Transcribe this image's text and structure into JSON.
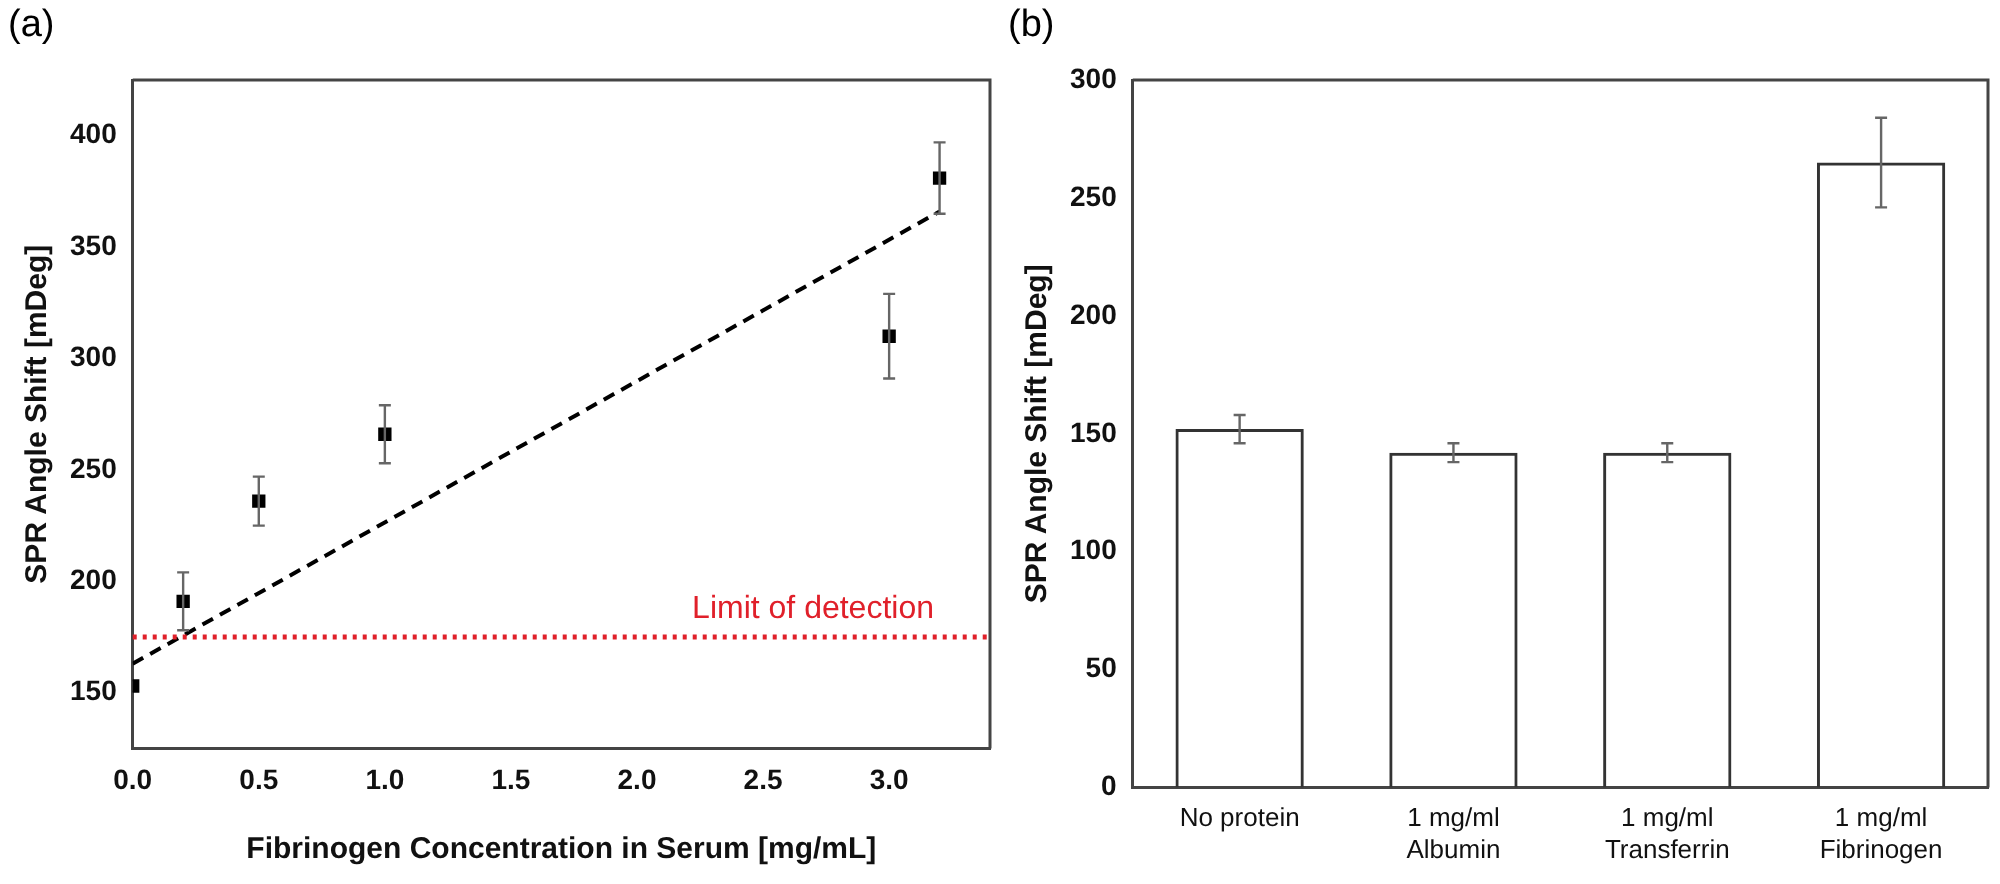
{
  "chart_data": [
    {
      "type": "scatter",
      "annotations": [
        "(a)"
      ],
      "xlabel": "Fibrinogen Concentration in Serum [mg/mL]",
      "ylabel": "SPR Angle Shift [mDeg]",
      "xlim": [
        0,
        3.4
      ],
      "xticks": [
        {
          "value": 0,
          "label": "0.0"
        },
        {
          "value": 0.5,
          "label": "0.5"
        },
        {
          "value": 1,
          "label": "1.0"
        },
        {
          "value": 1.5,
          "label": "1.5"
        },
        {
          "value": 2,
          "label": "2.0"
        },
        {
          "value": 2.5,
          "label": "2.5"
        },
        {
          "value": 3,
          "label": "3.0"
        }
      ],
      "ylim": [
        125,
        425
      ],
      "yticks": [
        150,
        200,
        250,
        300,
        350,
        400
      ],
      "grid": false,
      "legend": false,
      "series": [
        {
          "marker": "square",
          "color": "#000000",
          "x": [
            0,
            0.2,
            0.5,
            1,
            3,
            3.2
          ],
          "values": [
            153,
            191,
            236,
            266,
            310,
            381
          ],
          "errors": [
            null,
            13,
            11,
            13,
            19,
            16
          ]
        },
        {
          "type": "line",
          "marker": "none",
          "color": "#000000",
          "line_style": "dashed",
          "x": [
            0,
            3.2
          ],
          "values": [
            163,
            366
          ]
        }
      ],
      "ref_lines": [
        {
          "axis": "y",
          "value": 175,
          "label": "Limit of detection",
          "color": "#e0202a",
          "line_style": "dotted"
        }
      ]
    },
    {
      "type": "bar",
      "annotations": [
        "(b)"
      ],
      "ylabel": "SPR Angle Shift [mDeg]",
      "categories": [
        "No protein",
        "1 mg/ml\nAlbumin",
        "1 mg/ml\nTransferrin",
        "1 mg/ml\nFibrinogen"
      ],
      "ylim": [
        0,
        300
      ],
      "yticks": [
        0,
        50,
        100,
        150,
        200,
        250,
        300
      ],
      "grid": false,
      "legend": false,
      "series": [
        {
          "color": "#333333",
          "values": [
            152,
            142,
            142,
            265
          ],
          "errors": [
            6,
            4,
            4,
            19
          ]
        }
      ]
    }
  ]
}
